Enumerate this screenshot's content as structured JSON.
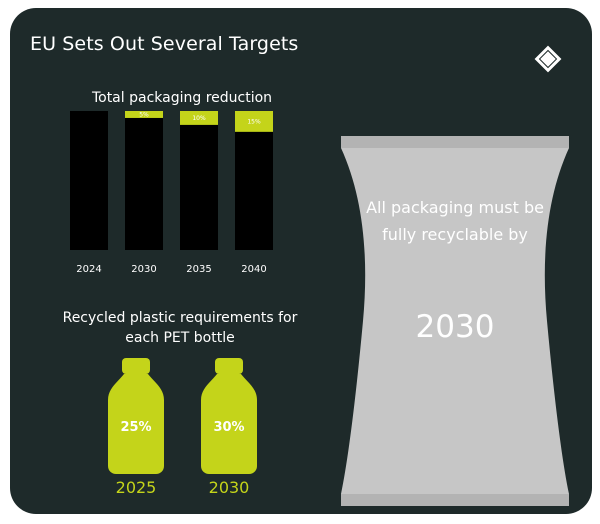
{
  "header": {
    "title": "EU Sets Out Several Targets"
  },
  "colors": {
    "background": "#1e2a2a",
    "accent": "#c4d41a",
    "bar": "#000000",
    "bag": "#c6c6c6"
  },
  "chart_data": [
    {
      "type": "bar",
      "title": "Total packaging reduction",
      "categories": [
        "2024",
        "2030",
        "2035",
        "2040"
      ],
      "series": [
        {
          "name": "",
          "values": [
            0,
            5,
            10,
            15
          ]
        }
      ],
      "value_labels": [
        "",
        "5%",
        "10%",
        "15%"
      ],
      "ylim": [
        0,
        100
      ],
      "grid": false
    },
    {
      "type": "bar",
      "title": "Recycled plastic requirements for each PET bottle",
      "categories": [
        "2025",
        "2030"
      ],
      "series": [
        {
          "name": "",
          "values": [
            25,
            30
          ]
        }
      ],
      "value_labels": [
        "25%",
        "30%"
      ]
    }
  ],
  "bag": {
    "text": "All packaging must be fully recyclable by",
    "year": "2030",
    "icon": "packaging-bag-icon"
  },
  "logo": {
    "icon": "diamond-logo-icon"
  }
}
